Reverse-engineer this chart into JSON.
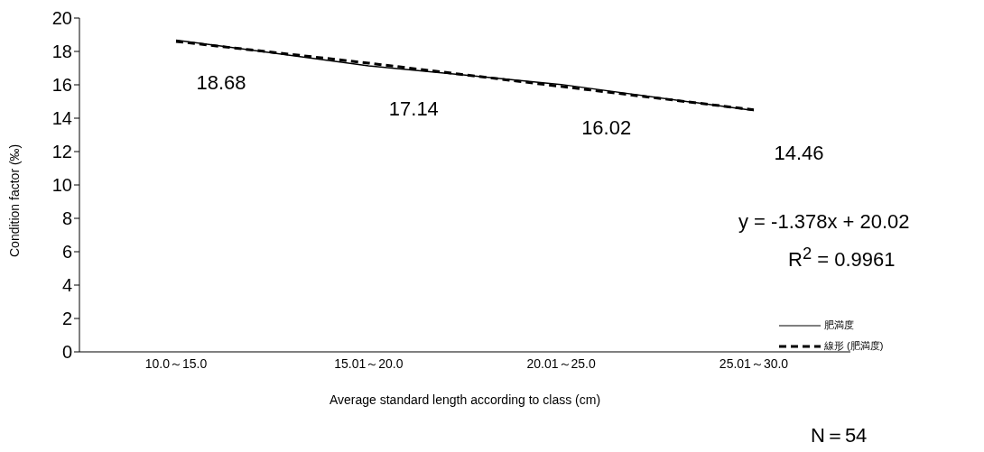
{
  "chart_data": {
    "type": "line",
    "xlabel": "Average standard length according to class (cm)",
    "ylabel": "Condition factor (‰)",
    "categories": [
      "10.0～15.0",
      "15.01～20.0",
      "20.01～25.0",
      "25.01～30.0"
    ],
    "series": [
      {
        "name": "肥満度",
        "color": "#000000",
        "values": [
          18.68,
          17.14,
          16.02,
          14.46
        ],
        "value_labels": [
          "18.68",
          "17.14",
          "16.02",
          "14.46"
        ],
        "line_style": "solid"
      },
      {
        "name": "線形 (肥満度)",
        "color": "#000000",
        "values": [
          18.6,
          17.3,
          15.9,
          14.5
        ],
        "line_style": "dashed"
      }
    ],
    "ylim": [
      0,
      20
    ],
    "yticks": [
      0,
      2,
      4,
      6,
      8,
      10,
      12,
      14,
      16,
      18,
      20
    ],
    "grid": false,
    "legend": "right",
    "marker": "none",
    "annotations": [
      "y = -1.378x + 20.02",
      "R$^{2}$ = 0.9961",
      "N＝54"
    ]
  }
}
